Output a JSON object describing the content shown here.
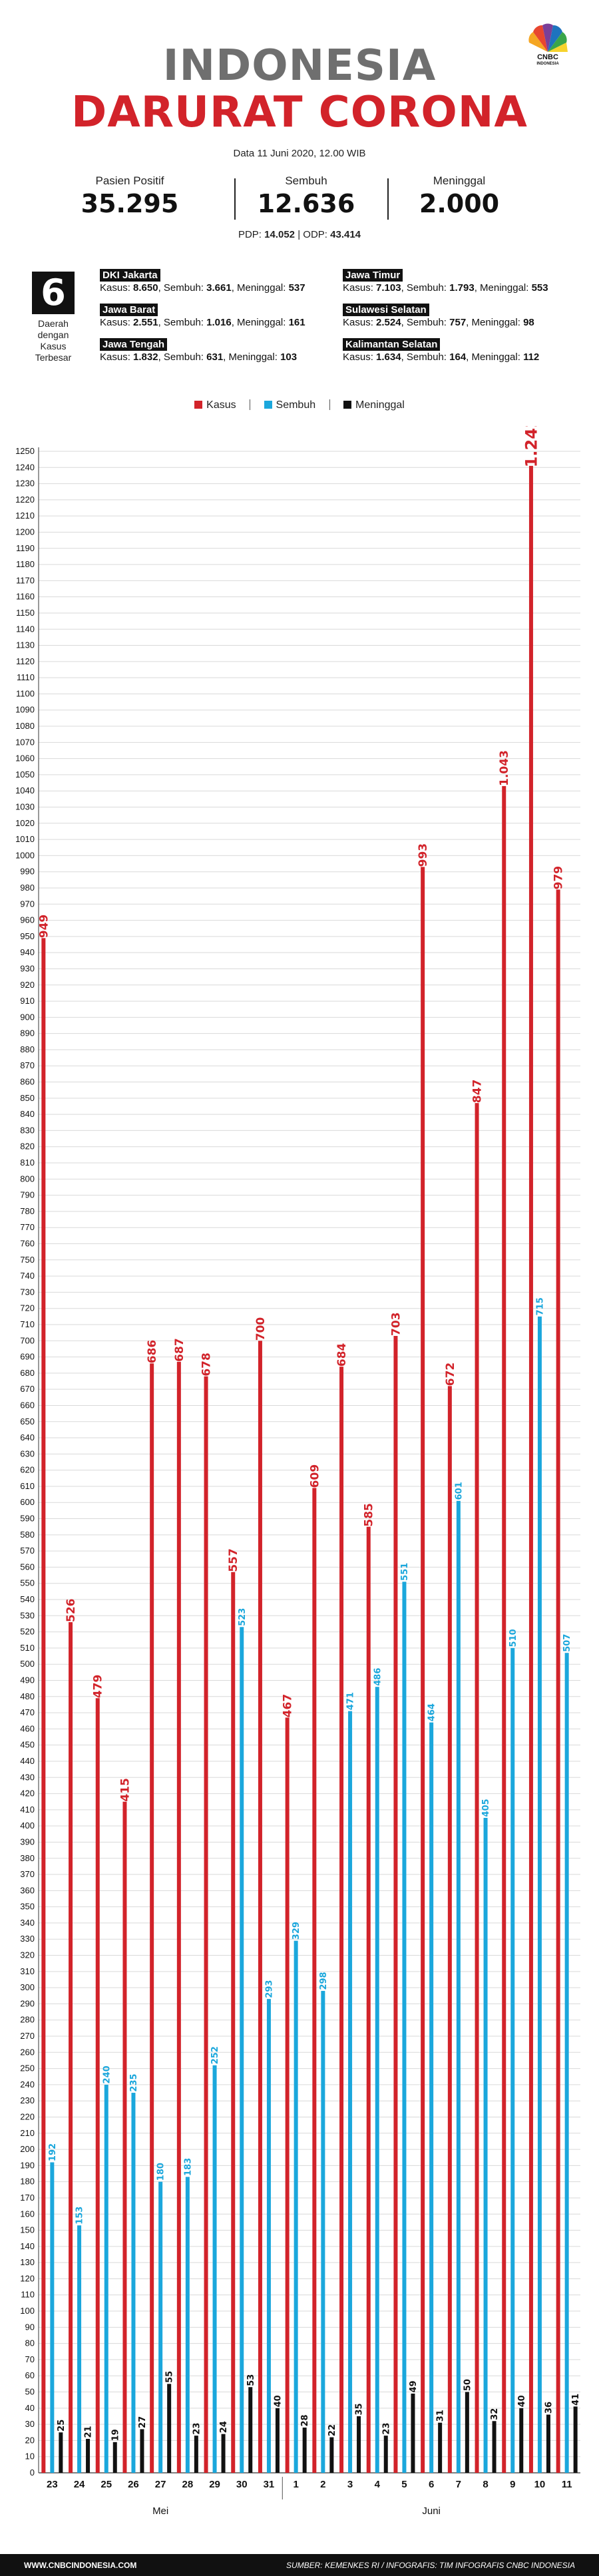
{
  "header": {
    "title_line1": "INDONESIA",
    "title_line2": "DARURAT CORONA",
    "date": "Data 11 Juni 2020, 12.00 WIB",
    "logo_text": "CNBC",
    "logo_sub": "INDONESIA"
  },
  "stats": [
    {
      "label": "Pasien Positif",
      "value": "35.295"
    },
    {
      "label": "Sembuh",
      "value": "12.636"
    },
    {
      "label": "Meninggal",
      "value": "2.000"
    }
  ],
  "odp_line": {
    "pdp_label": "PDP:",
    "pdp_value": "14.052",
    "separator": "|",
    "odp_label": "ODP:",
    "odp_value": "43.414"
  },
  "regions_box": {
    "count": "6",
    "caption": "Daerah dengan Kasus Terbesar"
  },
  "regions": [
    {
      "name": "DKI Jakarta",
      "kasus": "8.650",
      "sembuh": "3.661",
      "meninggal": "537"
    },
    {
      "name": "Jawa Barat",
      "kasus": "2.551",
      "sembuh": "1.016",
      "meninggal": "161"
    },
    {
      "name": "Jawa Tengah",
      "kasus": "1.832",
      "sembuh": "631",
      "meninggal": "103"
    },
    {
      "name": "Jawa Timur",
      "kasus": "7.103",
      "sembuh": "1.793",
      "meninggal": "553"
    },
    {
      "name": "Sulawesi Selatan",
      "kasus": "2.524",
      "sembuh": "757",
      "meninggal": "98"
    },
    {
      "name": "Kalimantan Selatan",
      "kasus": "1.634",
      "sembuh": "164",
      "meninggal": "112"
    }
  ],
  "region_labels": {
    "kasus": "Kasus:",
    "sembuh": "Sembuh:",
    "meninggal": "Meninggal:"
  },
  "footer": {
    "website": "WWW.CNBCINDONESIA.COM",
    "source": "SUMBER: KEMENKES RI / INFOGRAFIS: TIM INFOGRAFIS CNBC INDONESIA"
  },
  "colors": {
    "kasus": "#d2232a",
    "sembuh": "#1ba7dc",
    "meninggal": "#111111",
    "grid": "#d9d9d9"
  },
  "chart_data": {
    "type": "bar",
    "categories": [
      "23",
      "24",
      "25",
      "26",
      "27",
      "28",
      "29",
      "30",
      "31",
      "1",
      "2",
      "3",
      "4",
      "5",
      "6",
      "7",
      "8",
      "9",
      "10",
      "11"
    ],
    "category_groups": [
      {
        "label": "Mei",
        "categories": [
          "23",
          "24",
          "25",
          "26",
          "27",
          "28",
          "29",
          "30",
          "31"
        ]
      },
      {
        "label": "Juni",
        "categories": [
          "1",
          "2",
          "3",
          "4",
          "5",
          "6",
          "7",
          "8",
          "9",
          "10",
          "11"
        ]
      }
    ],
    "series": [
      {
        "name": "Kasus",
        "values": [
          949,
          526,
          479,
          415,
          686,
          687,
          678,
          557,
          700,
          467,
          609,
          684,
          585,
          703,
          993,
          672,
          847,
          1043,
          1241,
          979
        ]
      },
      {
        "name": "Sembuh",
        "values": [
          192,
          153,
          240,
          235,
          180,
          183,
          252,
          523,
          293,
          329,
          298,
          471,
          486,
          551,
          464,
          601,
          405,
          510,
          715,
          507
        ]
      },
      {
        "name": "Meninggal",
        "values": [
          25,
          21,
          19,
          27,
          55,
          23,
          24,
          53,
          40,
          28,
          22,
          35,
          23,
          49,
          31,
          50,
          32,
          40,
          36,
          41
        ]
      }
    ],
    "data_labels": {
      "Kasus": [
        "949",
        "526",
        "479",
        "415",
        "686",
        "687",
        "678",
        "557",
        "700",
        "467",
        "609",
        "684",
        "585",
        "703",
        "993",
        "672",
        "847",
        "1.043",
        "1.241",
        "979"
      ],
      "Sembuh": [
        "192",
        "153",
        "240",
        "235",
        "180",
        "183",
        "252",
        "523",
        "293",
        "329",
        "298",
        "471",
        "486",
        "551",
        "464",
        "601",
        "405",
        "510",
        "715",
        "507"
      ],
      "Meninggal": [
        "25",
        "21",
        "19",
        "27",
        "55",
        "23",
        "24",
        "53",
        "40",
        "28",
        "22",
        "35",
        "23",
        "49",
        "31",
        "50",
        "32",
        "40",
        "36",
        "41"
      ]
    },
    "ylim": [
      0,
      1250
    ],
    "ytick_step": 10,
    "grid": true,
    "legend_position": "top-center"
  }
}
